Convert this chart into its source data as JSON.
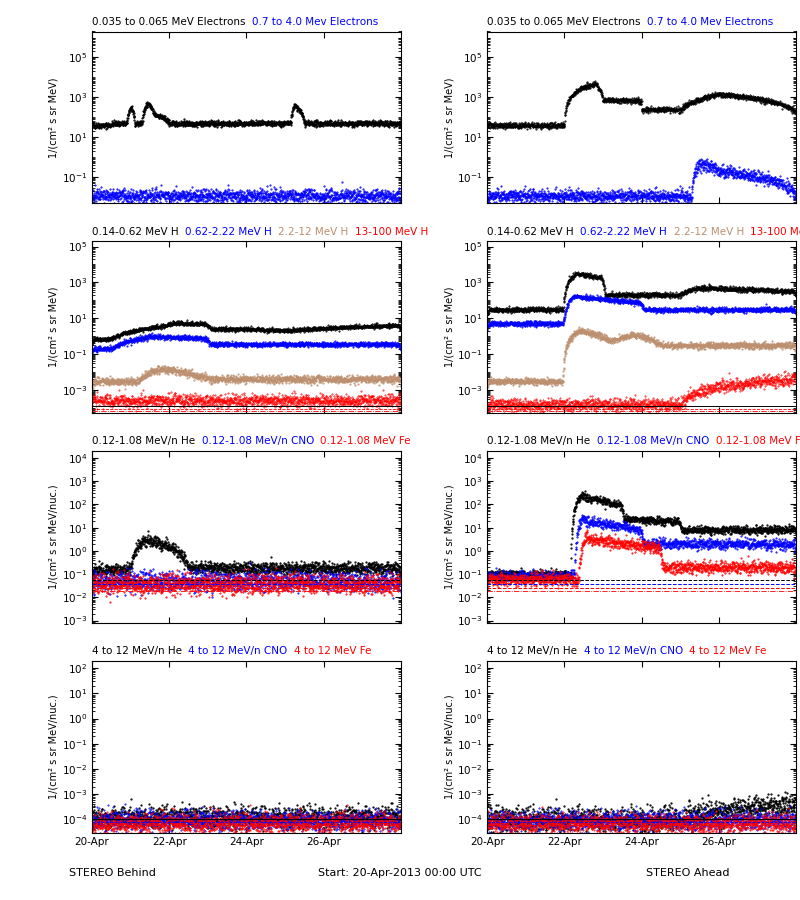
{
  "fig_width": 8.0,
  "fig_height": 9.0,
  "dpi": 100,
  "bg_color": "#ffffff",
  "panel_bg": "#ffffff",
  "x_tick_labels": [
    "20-Apr",
    "22-Apr",
    "24-Apr",
    "26-Apr"
  ],
  "left_label": "STEREO Behind",
  "right_label": "STEREO Ahead",
  "center_label": "Start: 20-Apr-2013 00:00 UTC",
  "tan_color": "#bc8f6f",
  "seed": 42
}
